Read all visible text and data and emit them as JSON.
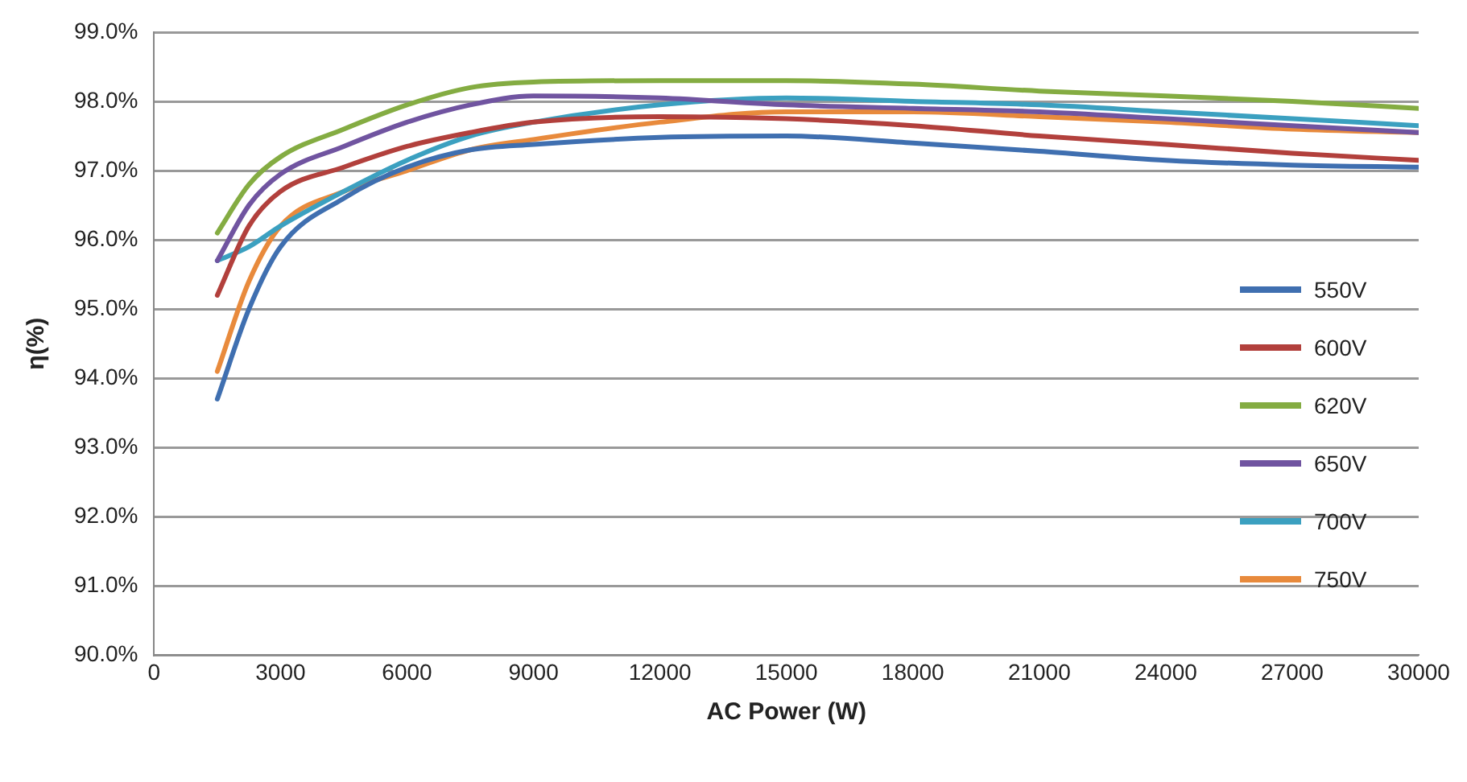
{
  "chart_data": {
    "type": "line",
    "xlabel": "AC Power (W)",
    "ylabel": "η(%)",
    "x": [
      1500,
      2250,
      3000,
      4500,
      6000,
      7500,
      9000,
      12000,
      15000,
      18000,
      21000,
      24000,
      27000,
      30000
    ],
    "series": [
      {
        "name": "550V",
        "color": "#3f6fb0",
        "values": [
          93.7,
          95.0,
          95.9,
          96.6,
          97.05,
          97.3,
          97.38,
          97.48,
          97.5,
          97.4,
          97.28,
          97.15,
          97.08,
          97.05
        ]
      },
      {
        "name": "600V",
        "color": "#b2403c",
        "values": [
          95.2,
          96.2,
          96.7,
          97.05,
          97.35,
          97.55,
          97.7,
          97.78,
          97.75,
          97.65,
          97.5,
          97.38,
          97.25,
          97.15
        ]
      },
      {
        "name": "620V",
        "color": "#84ac42",
        "values": [
          96.1,
          96.8,
          97.2,
          97.6,
          97.95,
          98.2,
          98.28,
          98.3,
          98.3,
          98.25,
          98.15,
          98.08,
          98.0,
          97.9
        ]
      },
      {
        "name": "650V",
        "color": "#7054a0",
        "values": [
          95.7,
          96.5,
          96.95,
          97.35,
          97.7,
          97.95,
          98.08,
          98.05,
          97.95,
          97.9,
          97.85,
          97.75,
          97.65,
          97.55
        ]
      },
      {
        "name": "700V",
        "color": "#3ba0c0",
        "values": [
          95.7,
          95.9,
          96.2,
          96.7,
          97.15,
          97.5,
          97.7,
          97.95,
          98.05,
          98.0,
          97.95,
          97.85,
          97.75,
          97.65
        ]
      },
      {
        "name": "750V",
        "color": "#e88a3c",
        "values": [
          94.1,
          95.4,
          96.2,
          96.7,
          97.0,
          97.3,
          97.45,
          97.7,
          97.85,
          97.85,
          97.78,
          97.7,
          97.6,
          97.55
        ]
      }
    ],
    "xlim": [
      0,
      30000
    ],
    "xticks": [
      0,
      3000,
      6000,
      9000,
      12000,
      15000,
      18000,
      21000,
      24000,
      27000,
      30000
    ],
    "ylim": [
      90,
      99
    ],
    "yticks": [
      {
        "value": 90,
        "label": "90.0%"
      },
      {
        "value": 91,
        "label": "91.0%"
      },
      {
        "value": 92,
        "label": "92.0%"
      },
      {
        "value": 93,
        "label": "93.0%"
      },
      {
        "value": 94,
        "label": "94.0%"
      },
      {
        "value": 95,
        "label": "95.0%"
      },
      {
        "value": 96,
        "label": "96.0%"
      },
      {
        "value": 97,
        "label": "97.0%"
      },
      {
        "value": 98,
        "label": "98.0%"
      },
      {
        "value": 99,
        "label": "99.0%"
      }
    ],
    "grid": "y",
    "legend": "right",
    "marker": "none",
    "line_style": "solid"
  }
}
